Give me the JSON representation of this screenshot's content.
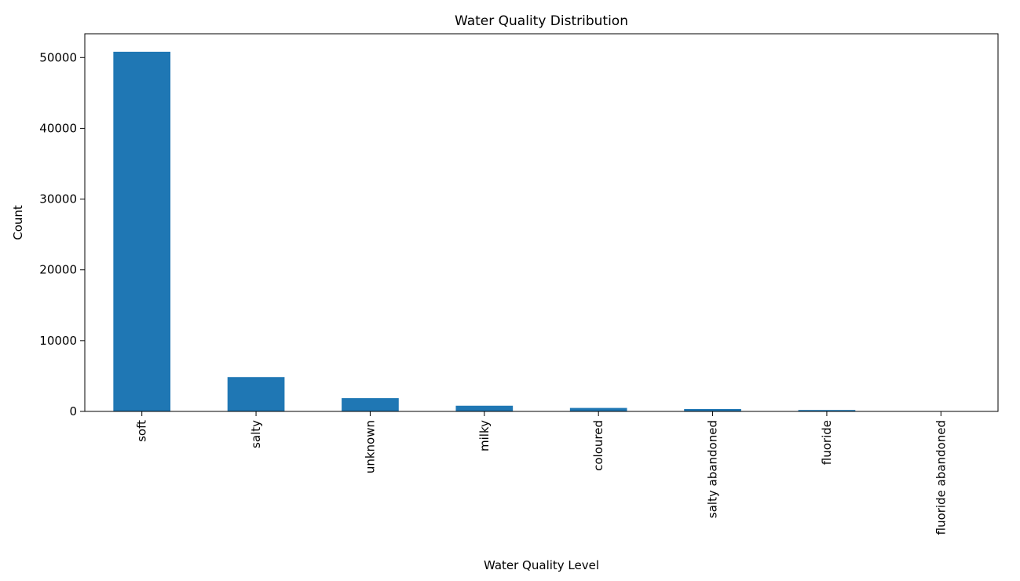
{
  "chart_data": {
    "type": "bar",
    "title": "Water Quality Distribution",
    "xlabel": "Water Quality Level",
    "ylabel": "Count",
    "categories": [
      "soft",
      "salty",
      "unknown",
      "milky",
      "coloured",
      "salty abandoned",
      "fluoride",
      "fluoride abandoned"
    ],
    "values": [
      50818,
      4856,
      1876,
      804,
      490,
      339,
      200,
      17
    ],
    "ylim": [
      0,
      53359
    ],
    "yticks": [
      0,
      10000,
      20000,
      30000,
      40000,
      50000
    ],
    "grid": false,
    "legend": "none",
    "bar_color": "#1f77b4"
  }
}
